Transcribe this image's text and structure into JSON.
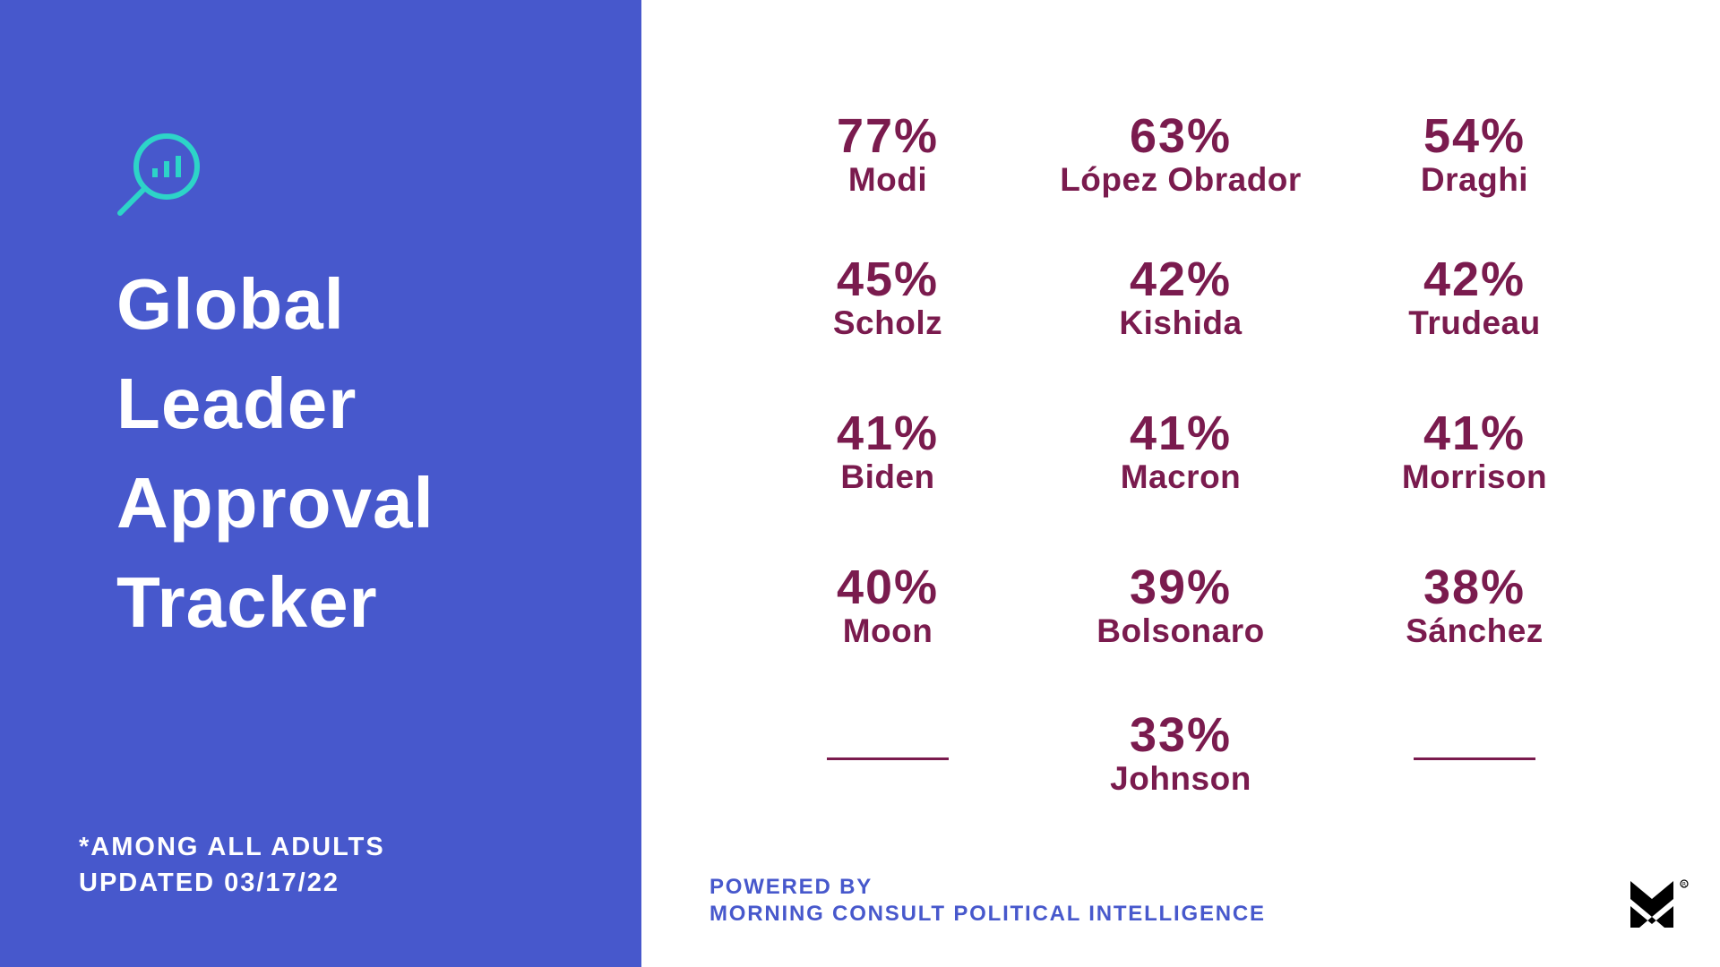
{
  "title_lines": [
    "Global",
    "Leader",
    "Approval",
    "Tracker"
  ],
  "footnote": {
    "line1": "*AMONG ALL ADULTS",
    "line2": "UPDATED 03/17/22"
  },
  "powered_by": {
    "line1": "POWERED BY",
    "line2": "MORNING CONSULT POLITICAL INTELLIGENCE"
  },
  "icons": {
    "header": "magnifier-chart-icon",
    "brand": "morning-consult-logo"
  },
  "colors": {
    "panel": "#4758cc",
    "accent": "#2dd4c8",
    "value": "#7a1b4e",
    "brand_text": "#4758cc"
  },
  "chart_data": {
    "type": "table",
    "title": "Global Leader Approval Tracker",
    "unit": "%",
    "leaders": [
      {
        "name": "Modi",
        "approval": 77,
        "label": "77%"
      },
      {
        "name": "López Obrador",
        "approval": 63,
        "label": "63%"
      },
      {
        "name": "Draghi",
        "approval": 54,
        "label": "54%"
      },
      {
        "name": "Scholz",
        "approval": 45,
        "label": "45%"
      },
      {
        "name": "Kishida",
        "approval": 42,
        "label": "42%"
      },
      {
        "name": "Trudeau",
        "approval": 42,
        "label": "42%"
      },
      {
        "name": "Biden",
        "approval": 41,
        "label": "41%"
      },
      {
        "name": "Macron",
        "approval": 41,
        "label": "41%"
      },
      {
        "name": "Morrison",
        "approval": 41,
        "label": "41%"
      },
      {
        "name": "Moon",
        "approval": 40,
        "label": "40%"
      },
      {
        "name": "Bolsonaro",
        "approval": 39,
        "label": "39%"
      },
      {
        "name": "Sánchez",
        "approval": 38,
        "label": "38%"
      },
      {
        "name": "Johnson",
        "approval": 33,
        "label": "33%"
      }
    ]
  }
}
